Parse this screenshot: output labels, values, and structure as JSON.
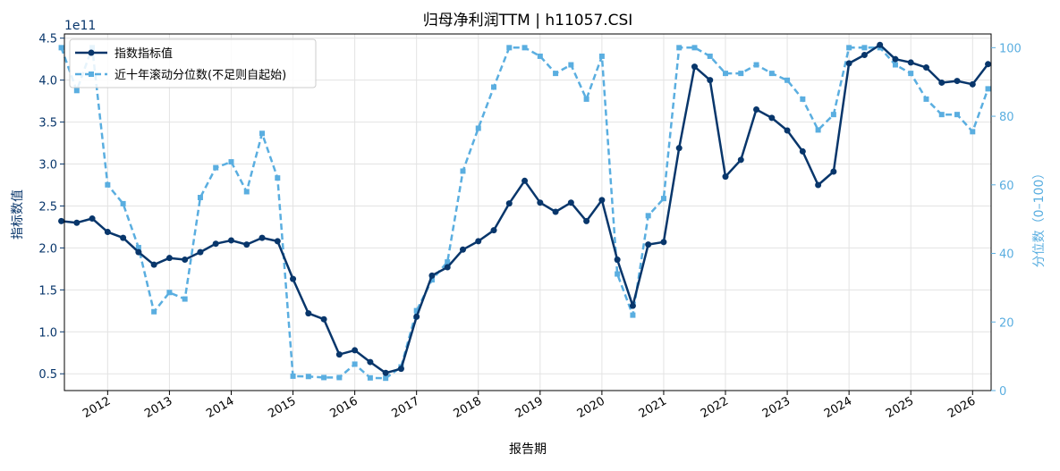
{
  "chart_data": {
    "type": "line",
    "title": "归母净利润TTM | h11057.CSI",
    "xlabel": "报告期",
    "ylabel_left": "指标数值",
    "ylabel_right": "分位数（0–100）",
    "left_axis_multiplier": "1e11",
    "left_ylim": [
      0.3,
      4.55
    ],
    "left_ticks": [
      "0.5",
      "1.0",
      "1.5",
      "2.0",
      "2.5",
      "3.0",
      "3.5",
      "4.0",
      "4.5"
    ],
    "right_ylim": [
      0,
      104
    ],
    "right_ticks": [
      "0",
      "20",
      "40",
      "60",
      "80",
      "100"
    ],
    "x_range": [
      2011.3,
      2026.3
    ],
    "x_ticks": [
      "2012",
      "2013",
      "2014",
      "2015",
      "2016",
      "2017",
      "2018",
      "2019",
      "2020",
      "2021",
      "2022",
      "2023",
      "2024",
      "2025",
      "2026"
    ],
    "grid": true,
    "legend_position": "top-left",
    "x": [
      2011.25,
      2011.5,
      2011.75,
      2012.0,
      2012.25,
      2012.5,
      2012.75,
      2013.0,
      2013.25,
      2013.5,
      2013.75,
      2014.0,
      2014.25,
      2014.5,
      2014.75,
      2015.0,
      2015.25,
      2015.5,
      2015.75,
      2016.0,
      2016.25,
      2016.5,
      2016.75,
      2017.0,
      2017.25,
      2017.5,
      2017.75,
      2018.0,
      2018.25,
      2018.5,
      2018.75,
      2019.0,
      2019.25,
      2019.5,
      2019.75,
      2020.0,
      2020.25,
      2020.5,
      2020.75,
      2021.0,
      2021.25,
      2021.5,
      2021.75,
      2022.0,
      2022.25,
      2022.5,
      2022.75,
      2023.0,
      2023.25,
      2023.5,
      2023.75,
      2024.0,
      2024.25,
      2024.5,
      2024.75,
      2025.0,
      2025.25,
      2025.5,
      2025.75,
      2026.0,
      2026.25
    ],
    "series": [
      {
        "name": "指数指标值",
        "axis": "left",
        "color": "#08366b",
        "values": [
          2.32,
          2.3,
          2.35,
          2.19,
          2.12,
          1.95,
          1.8,
          1.88,
          1.86,
          1.95,
          2.05,
          2.09,
          2.04,
          2.12,
          2.08,
          1.63,
          1.22,
          1.15,
          0.73,
          0.78,
          0.64,
          0.51,
          0.56,
          1.18,
          1.67,
          1.77,
          1.98,
          2.08,
          2.21,
          2.53,
          2.8,
          2.54,
          2.43,
          2.54,
          2.32,
          2.57,
          1.86,
          1.31,
          2.04,
          2.07,
          3.19,
          4.16,
          4.0,
          2.85,
          3.05,
          3.65,
          3.55,
          3.4,
          3.15,
          2.75,
          2.91,
          4.2,
          4.3,
          4.42,
          4.25,
          4.21,
          4.15,
          3.97,
          3.99,
          3.95,
          4.19
        ]
      },
      {
        "name": "近十年滚动分位数(不足则自起始)",
        "axis": "right",
        "color": "#5aaee0",
        "values": [
          100,
          87.5,
          100,
          60,
          54.5,
          41.7,
          23,
          28.6,
          26.7,
          56.3,
          65,
          66.7,
          58,
          75,
          62,
          4.2,
          4.1,
          3.8,
          3.8,
          7.7,
          3.7,
          3.6,
          6.9,
          23.3,
          32.3,
          37.5,
          64,
          76.5,
          88.5,
          100,
          100,
          97.5,
          92.5,
          95,
          85,
          97.5,
          34,
          22,
          51,
          56,
          100,
          100,
          97.5,
          92.5,
          92.5,
          95,
          92.5,
          90.5,
          85,
          76,
          80.5,
          100,
          100,
          100,
          95,
          92.5,
          85,
          80.5,
          80.5,
          75.5,
          88
        ]
      }
    ]
  }
}
